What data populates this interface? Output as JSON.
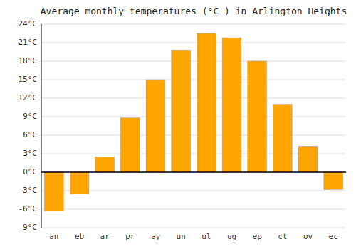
{
  "chart_data": {
    "type": "bar",
    "title": "Average monthly temperatures (°C ) in Arlington Heights",
    "categories": [
      "an",
      "eb",
      "ar",
      "pr",
      "ay",
      "un",
      "ul",
      "ug",
      "ep",
      "ct",
      "ov",
      "ec"
    ],
    "values": [
      -6.3,
      -3.5,
      2.5,
      8.8,
      15.0,
      19.8,
      22.5,
      21.8,
      18.0,
      11.0,
      4.2,
      -2.8
    ],
    "color": "#FFA500",
    "ylim": [
      -9,
      24
    ],
    "yticks": [
      {
        "value": -9,
        "label": "-9°C"
      },
      {
        "value": -6,
        "label": "-6°C"
      },
      {
        "value": -3,
        "label": "-3°C"
      },
      {
        "value": 0,
        "label": "0°C"
      },
      {
        "value": 3,
        "label": "3°C"
      },
      {
        "value": 6,
        "label": "6°C"
      },
      {
        "value": 9,
        "label": "9°C"
      },
      {
        "value": 12,
        "label": "12°C"
      },
      {
        "value": 15,
        "label": "15°C"
      },
      {
        "value": 18,
        "label": "18°C"
      },
      {
        "value": 21,
        "label": "21°C"
      },
      {
        "value": 24,
        "label": "24°C"
      }
    ],
    "grid": true
  }
}
